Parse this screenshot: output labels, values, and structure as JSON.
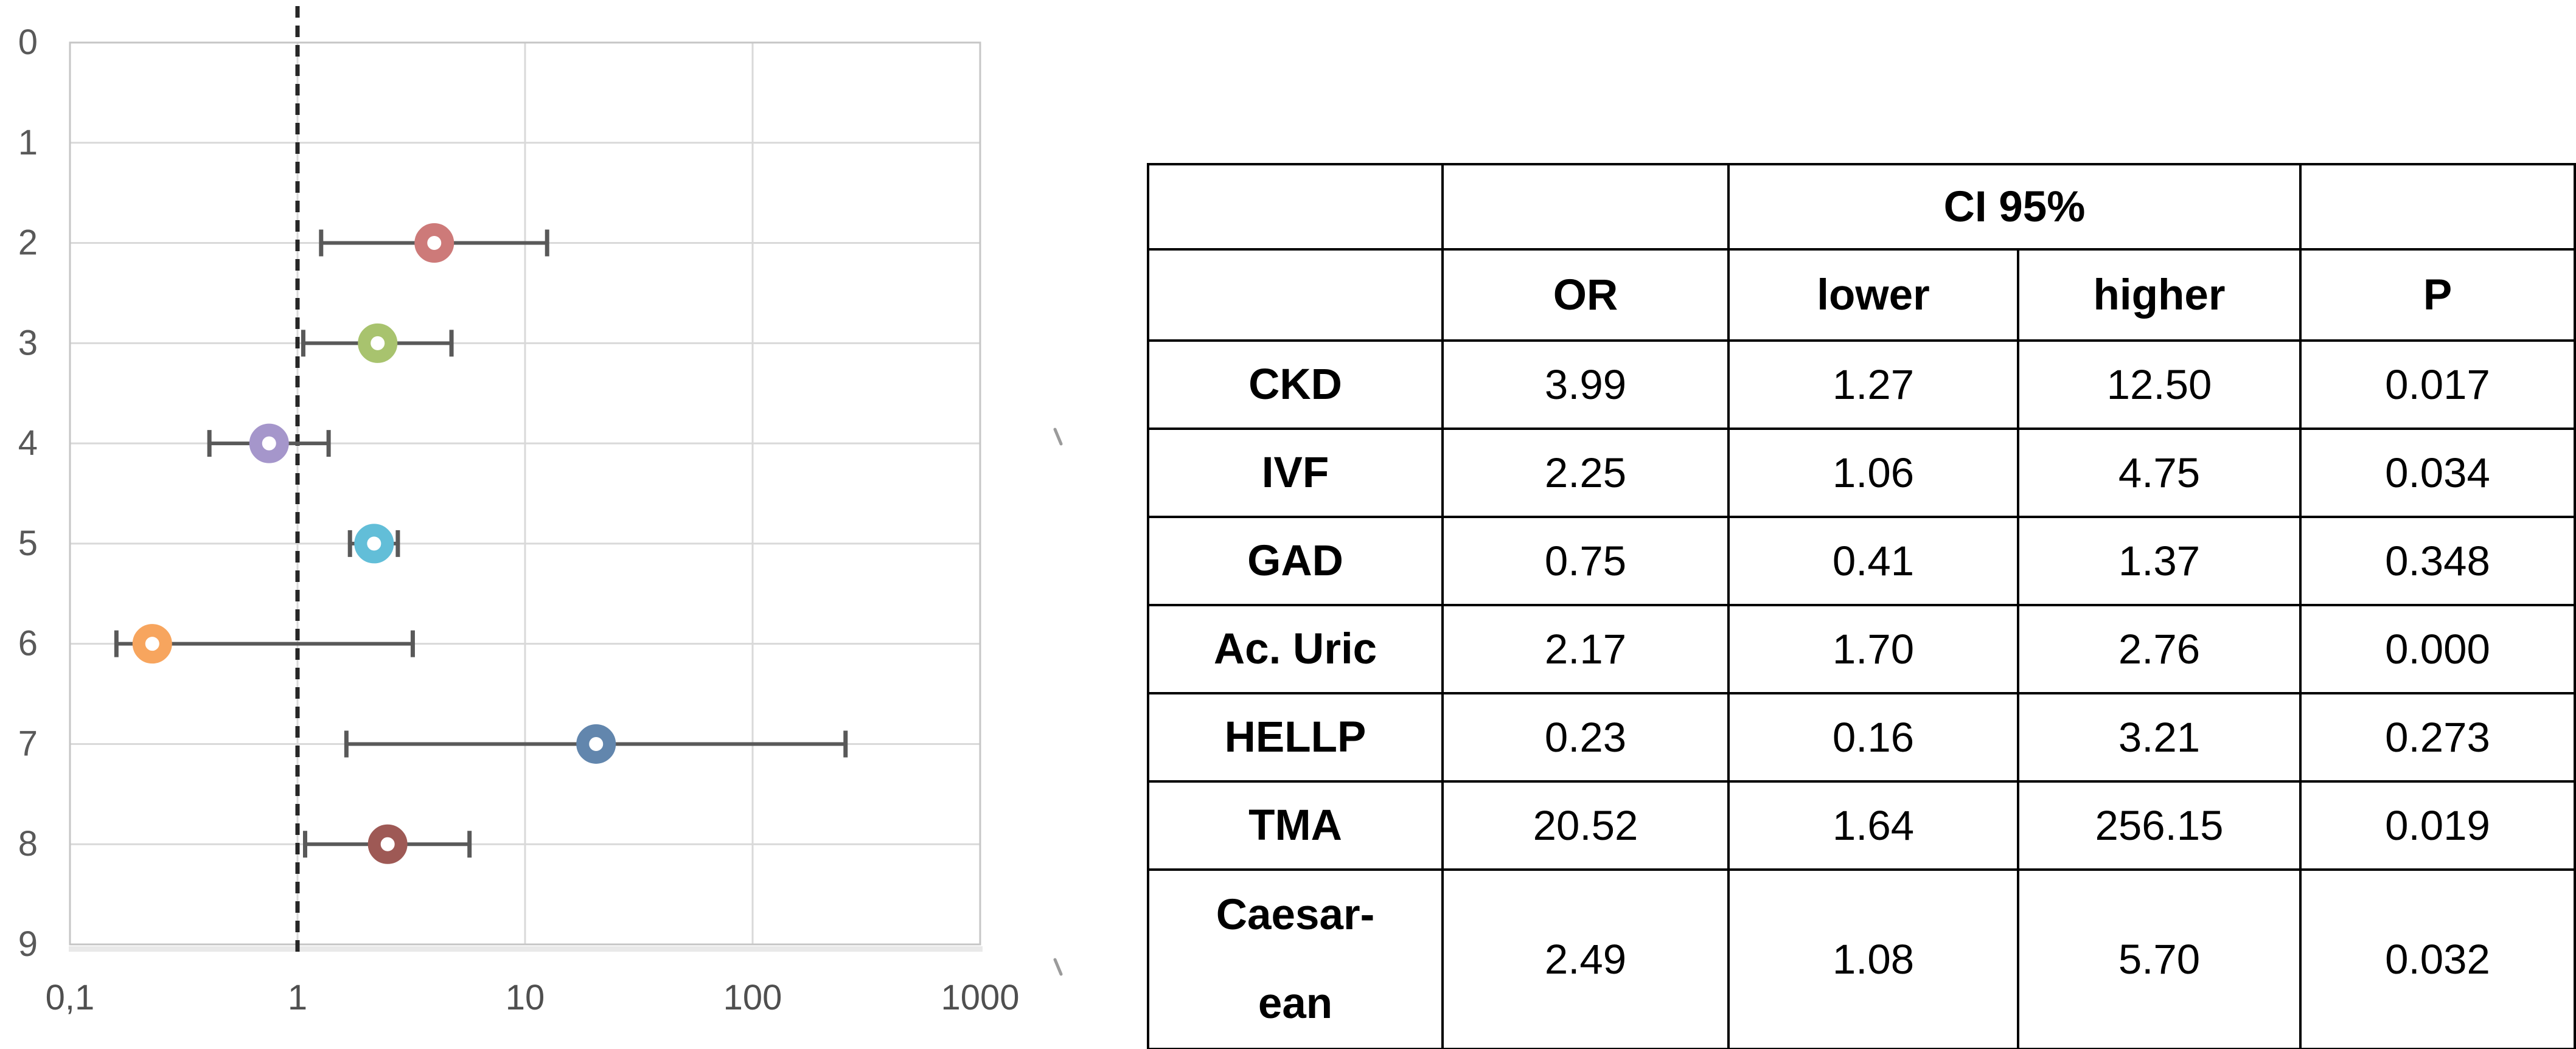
{
  "chart_data": {
    "type": "scatter",
    "subtype": "forest-plot",
    "title": "",
    "xlabel": "",
    "ylabel": "",
    "x_axis": {
      "scale": "log",
      "min": 0.1,
      "max": 1000,
      "tick_values": [
        0.1,
        1,
        10,
        100,
        1000
      ],
      "tick_labels": [
        "0,1",
        "1",
        "10",
        "100",
        "1000"
      ]
    },
    "y_axis": {
      "min": 0,
      "max": 9,
      "direction": "top-to-bottom",
      "tick_values": [
        0,
        1,
        2,
        3,
        4,
        5,
        6,
        7,
        8,
        9
      ],
      "tick_labels": [
        "0",
        "1",
        "2",
        "3",
        "4",
        "5",
        "6",
        "7",
        "8",
        "9"
      ]
    },
    "grid": true,
    "gridline_color": "#d9d9d9",
    "plot_border_color": "#c6c6c6",
    "axis_label_color": "#595959",
    "error_bar_color": "#595959",
    "reference_line": {
      "x": 1,
      "style": "dashed",
      "color": "#262626"
    },
    "series": [
      {
        "name": "CKD",
        "y": 2,
        "or": 3.99,
        "ci_lower": 1.27,
        "ci_higher": 12.5,
        "marker_color": "#cd7a79"
      },
      {
        "name": "IVF",
        "y": 3,
        "or": 2.25,
        "ci_lower": 1.06,
        "ci_higher": 4.75,
        "marker_color": "#a8c36e"
      },
      {
        "name": "GAD",
        "y": 4,
        "or": 0.75,
        "ci_lower": 0.41,
        "ci_higher": 1.37,
        "marker_color": "#a596cb"
      },
      {
        "name": "Ac. Uric",
        "y": 5,
        "or": 2.17,
        "ci_lower": 1.7,
        "ci_higher": 2.76,
        "marker_color": "#62bed8"
      },
      {
        "name": "HELLP",
        "y": 6,
        "or": 0.23,
        "ci_lower": 0.16,
        "ci_higher": 3.21,
        "marker_color": "#f7a55e"
      },
      {
        "name": "TMA",
        "y": 7,
        "or": 20.52,
        "ci_lower": 1.64,
        "ci_higher": 256.15,
        "marker_color": "#6286ad"
      },
      {
        "name": "Caesarean",
        "y": 8,
        "or": 2.49,
        "ci_lower": 1.08,
        "ci_higher": 5.7,
        "marker_color": "#9e5955"
      }
    ]
  },
  "table": {
    "ci_header": "CI 95%",
    "columns": [
      "",
      "OR",
      "lower",
      "higher",
      "P"
    ],
    "rows": [
      {
        "label": "CKD",
        "or": "3.99",
        "lower": "1.27",
        "higher": "12.50",
        "p": "0.017"
      },
      {
        "label": "IVF",
        "or": "2.25",
        "lower": "1.06",
        "higher": "4.75",
        "p": "0.034"
      },
      {
        "label": "GAD",
        "or": "0.75",
        "lower": "0.41",
        "higher": "1.37",
        "p": "0.348"
      },
      {
        "label": "Ac. Uric",
        "or": "2.17",
        "lower": "1.70",
        "higher": "2.76",
        "p": "0.000"
      },
      {
        "label": "HELLP",
        "or": "0.23",
        "lower": "0.16",
        "higher": "3.21",
        "p": "0.273"
      },
      {
        "label": "TMA",
        "or": "20.52",
        "lower": "1.64",
        "higher": "256.15",
        "p": "0.019"
      },
      {
        "label_lines": [
          "Caesar-",
          "ean"
        ],
        "or": "2.49",
        "lower": "1.08",
        "higher": "5.70",
        "p": "0.032"
      }
    ]
  }
}
